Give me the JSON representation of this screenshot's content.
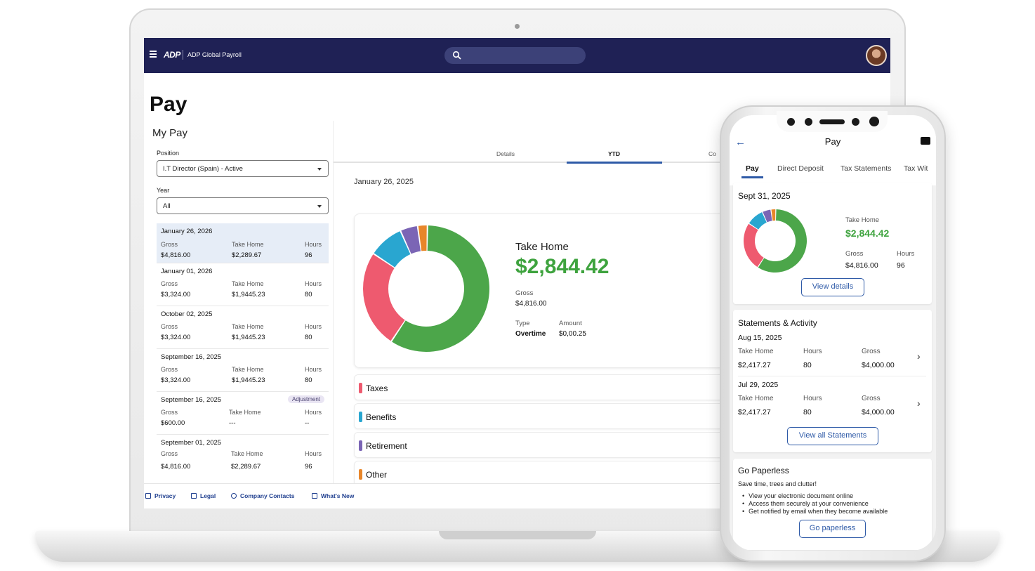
{
  "desktop": {
    "app_title": "ADP Global Payroll",
    "logo_text": "ADP",
    "page_title": "Pay",
    "section_title": "My Pay",
    "position": {
      "label": "Position",
      "value": "I.T Director (Spain) - Active"
    },
    "year": {
      "label": "Year",
      "value": "All"
    },
    "pay_list": [
      {
        "date": "January 26, 2026",
        "gross": "$4,816.00",
        "take_home": "$2,289.67",
        "hours": "96"
      },
      {
        "date": "January 01, 2026",
        "gross": "$3,324.00",
        "take_home": "$1,9445.23",
        "hours": "80"
      },
      {
        "date": "October 02, 2025",
        "gross": "$3,324.00",
        "take_home": "$1,9445.23",
        "hours": "80"
      },
      {
        "date": "September 16, 2025",
        "gross": "$3,324.00",
        "take_home": "$1,9445.23",
        "hours": "80"
      },
      {
        "date": "September 16, 2025",
        "badge": "Adjustment",
        "gross": "$600.00",
        "take_home": "---",
        "hours": "--"
      },
      {
        "date": "September 01, 2025",
        "gross": "$4,816.00",
        "take_home": "$2,289.67",
        "hours": "96"
      }
    ],
    "col_labels": {
      "gross": "Gross",
      "take_home": "Take Home",
      "hours": "Hours"
    },
    "tabs": [
      "Details",
      "YTD",
      "Co"
    ],
    "main_date": "January 26, 2025",
    "summary": {
      "take_home_label": "Take Home",
      "take_home_value": "$2,844.42",
      "gross_label": "Gross",
      "gross_value": "$4,816.00",
      "type_label": "Type",
      "type_value": "Overtime",
      "amount_label": "Amount",
      "amount_value": "$0,00.25"
    },
    "categories": [
      {
        "name": "Taxes",
        "color": "#ee5a6f"
      },
      {
        "name": "Benefits",
        "color": "#29a6d0"
      },
      {
        "name": "Retirement",
        "color": "#7b65b5"
      },
      {
        "name": "Other",
        "color": "#e8862a"
      }
    ],
    "footer_links": [
      "Privacy",
      "Legal",
      "Company Contacts",
      "What's New"
    ]
  },
  "chart_data": {
    "type": "pie",
    "slices": [
      {
        "label": "Take Home",
        "value": 0.59,
        "color": "#4ca64a"
      },
      {
        "label": "Taxes",
        "value": 0.25,
        "color": "#ee5a6f"
      },
      {
        "label": "Benefits",
        "value": 0.09,
        "color": "#29a6d0"
      },
      {
        "label": "Retirement",
        "value": 0.045,
        "color": "#7b65b5"
      },
      {
        "label": "Other",
        "value": 0.025,
        "color": "#e8862a"
      }
    ]
  },
  "phone": {
    "title": "Pay",
    "tabs": [
      "Pay",
      "Direct Deposit",
      "Tax Statements",
      "Tax Wit"
    ],
    "summary": {
      "date": "Sept 31, 2025",
      "take_home_label": "Take Home",
      "take_home_value": "$2,844.42",
      "gross_label": "Gross",
      "gross_value": "$4,816.00",
      "hours_label": "Hours",
      "hours_value": "96",
      "button": "View details"
    },
    "statements": {
      "title": "Statements & Activity",
      "labels": {
        "take_home": "Take Home",
        "hours": "Hours",
        "gross": "Gross"
      },
      "items": [
        {
          "date": "Aug 15, 2025",
          "take_home": "$2,417.27",
          "hours": "80",
          "gross": "$4,000.00"
        },
        {
          "date": "Jul 29, 2025",
          "take_home": "$2,417.27",
          "hours": "80",
          "gross": "$4,000.00"
        }
      ],
      "button": "View all Statements"
    },
    "paperless": {
      "title": "Go Paperless",
      "subtitle": "Save time, trees and clutter!",
      "bullets": [
        "View your electronic document online",
        "Access them securely at your convenience",
        "Get notified by email when they become available"
      ],
      "button": "Go paperless"
    }
  }
}
